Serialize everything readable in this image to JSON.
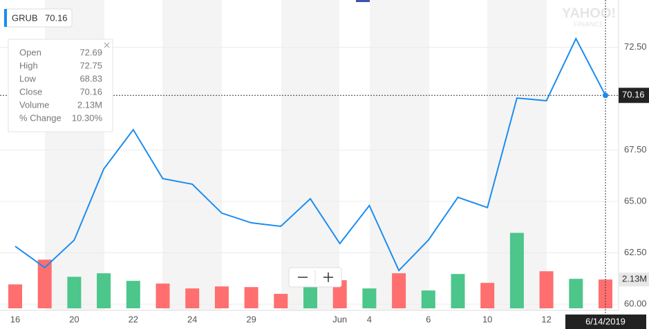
{
  "chart_data": {
    "type": "line",
    "ticker": "GRUB",
    "watermark": [
      "YAHOO!",
      "FINANCE"
    ],
    "categories": [
      "16",
      null,
      "20",
      null,
      "22",
      null,
      "24",
      null,
      "29",
      null,
      null,
      "Jun",
      "4",
      null,
      "6",
      null,
      "10",
      null,
      "12",
      null,
      null
    ],
    "series": [
      {
        "name": "GRUB",
        "color": "#1a8cf0",
        "values": [
          62.82,
          61.78,
          63.12,
          66.58,
          68.49,
          66.11,
          65.84,
          64.43,
          63.96,
          63.79,
          65.13,
          62.95,
          64.8,
          61.64,
          63.12,
          65.2,
          64.7,
          70.03,
          69.9,
          72.92,
          70.16
        ]
      },
      {
        "name": "Volume",
        "type": "bar",
        "axis": "y2",
        "values": [
          1.77,
          3.6,
          2.33,
          2.59,
          2.03,
          1.83,
          1.47,
          1.62,
          1.57,
          1.07,
          1.67,
          2.08,
          1.47,
          2.59,
          1.32,
          2.54,
          1.88,
          5.58,
          2.74,
          2.18,
          2.13
        ],
        "value_labels": [
          null,
          null,
          null,
          null,
          null,
          null,
          null,
          null,
          null,
          null,
          null,
          null,
          null,
          null,
          null,
          null,
          null,
          null,
          null,
          null,
          "2.13M"
        ],
        "colors": [
          "#ff6f6f",
          "#ff6f6f",
          "#4cc68a",
          "#4cc68a",
          "#4cc68a",
          "#ff6f6f",
          "#ff6f6f",
          "#ff6f6f",
          "#ff6f6f",
          "#ff6f6f",
          "#4cc68a",
          "#ff6f6f",
          "#4cc68a",
          "#ff6f6f",
          "#4cc68a",
          "#4cc68a",
          "#ff6f6f",
          "#4cc68a",
          "#ff6f6f",
          "#4cc68a",
          "#ff6f6f"
        ]
      }
    ],
    "ylim": [
      59.7,
      74.8
    ],
    "yticks": [
      {
        "value": 60,
        "label": "60.00"
      },
      {
        "value": 62.5,
        "label": "62.50"
      },
      {
        "value": 65,
        "label": "65.00"
      },
      {
        "value": 67.5,
        "label": "67.50"
      },
      {
        "value": 72.5,
        "label": "72.50"
      }
    ],
    "y2lim": [
      0,
      22.8
    ],
    "grid": true,
    "crosshair_date": "6/14/2019",
    "tooltip": [
      {
        "label": "Open",
        "value": "72.69"
      },
      {
        "label": "High",
        "value": "72.75"
      },
      {
        "label": "Low",
        "value": "68.83"
      },
      {
        "label": "Close"
      },
      {
        "label": "Volume"
      },
      {
        "label": "% Change",
        "value": "10.30%"
      }
    ]
  }
}
